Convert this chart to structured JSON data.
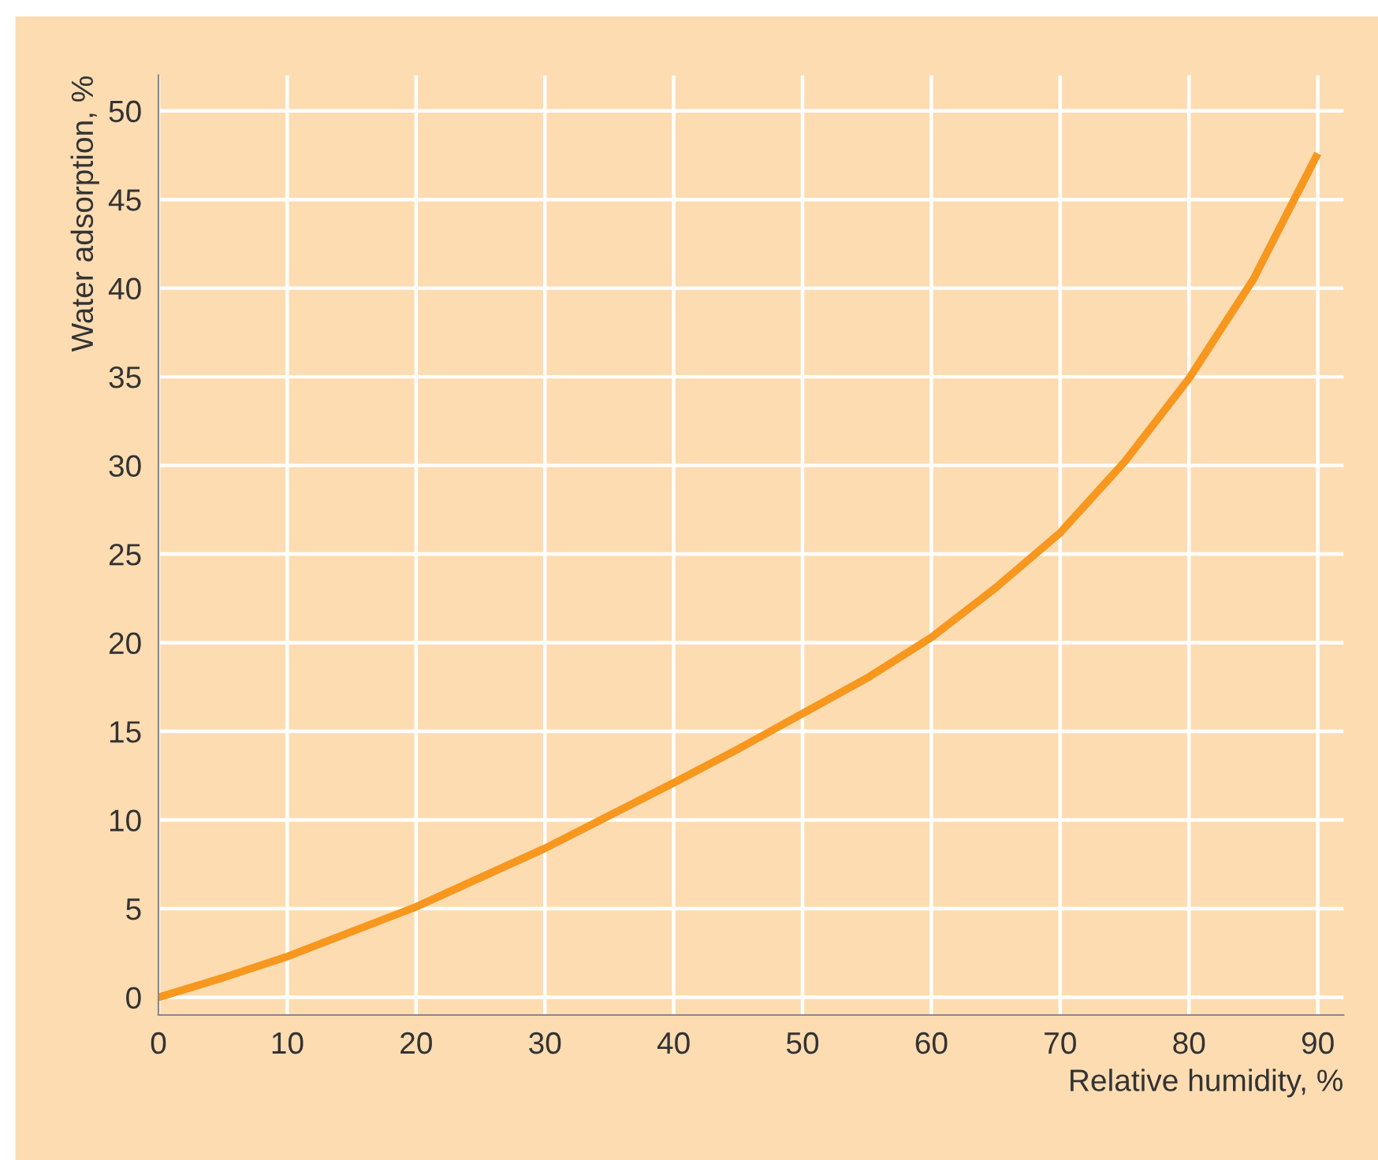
{
  "chart_data": {
    "type": "line",
    "xlabel": "Relative humidity, %",
    "ylabel": "Water adsorption, %",
    "x": [
      0,
      5,
      10,
      20,
      30,
      40,
      45,
      50,
      55,
      60,
      65,
      70,
      75,
      80,
      85,
      90
    ],
    "series": [
      {
        "color": "#f7971e",
        "values": [
          0,
          1.1,
          2.3,
          5.1,
          8.4,
          12.1,
          14,
          16.0,
          18,
          20.3,
          23.1,
          26.2,
          30.2,
          34.9,
          40.5,
          47.6
        ]
      }
    ],
    "xlim": [
      0,
      92
    ],
    "ylim": [
      -1,
      52
    ],
    "xticks": [
      0,
      10,
      20,
      30,
      40,
      50,
      60,
      70,
      80,
      90
    ],
    "yticks": [
      0,
      5,
      10,
      15,
      20,
      25,
      30,
      35,
      40,
      45,
      50
    ],
    "grid": true,
    "marker": "none",
    "line_style": "solid"
  }
}
